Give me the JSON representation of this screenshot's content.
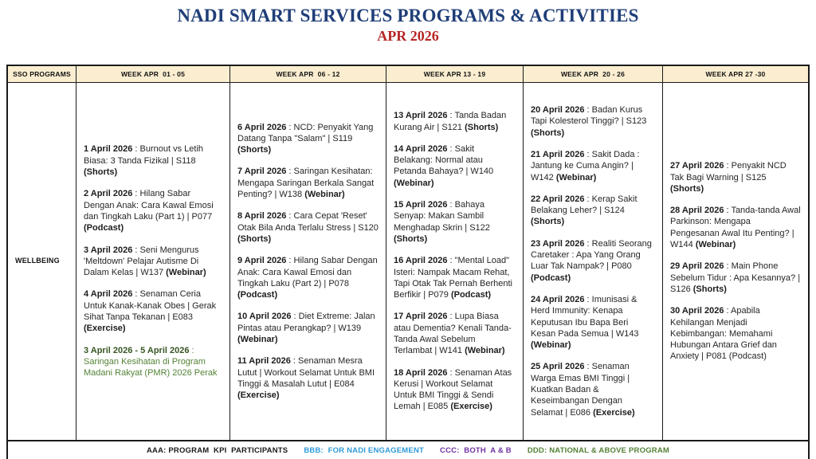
{
  "title": "NADI SMART SERVICES PROGRAMS & ACTIVITIES",
  "subtitle": "APR 2026",
  "colors": {
    "title_navy": "#1F3E78",
    "subtitle_red": "#B62525",
    "header_bg": "#FBEED0",
    "green_event_date": "#375623",
    "green_event_text": "#538235",
    "legend_black": "#1a1a1a",
    "legend_blue": "#2E9AD8",
    "legend_purple": "#7030A0",
    "legend_green": "#538135"
  },
  "table": {
    "corner_header": "SSO PROGRAMS",
    "week_headers": [
      "WEEK APR  01 - 05",
      "WEEK APR  06 - 12",
      "WEEK APR 13 - 19",
      "WEEK APR  20 - 26",
      "WEEK APR 27 -30"
    ],
    "row_label": "WELLBEING",
    "weeks": [
      {
        "events": [
          {
            "date": "1 April 2026",
            "desc": "Burnout vs Letih Biasa: 3 Tanda Fizikal | S118",
            "tag": "(Shorts)",
            "tag_bold": true,
            "green": false
          },
          {
            "date": "2 April 2026",
            "desc": "Hilang Sabar Dengan Anak: Cara Kawal Emosi dan Tingkah Laku (Part 1) | P077",
            "tag": "(Podcast)",
            "tag_bold": true,
            "green": false
          },
          {
            "date": "3 April 2026",
            "desc": "Seni Mengurus 'Meltdown' Pelajar Autisme Di Dalam Kelas | W137",
            "tag": "(Webinar)",
            "tag_bold": true,
            "green": false
          },
          {
            "date": "4 April 2026",
            "desc": "Senaman Ceria Untuk Kanak-Kanak Obes | Gerak Sihat Tanpa Tekanan | E083",
            "tag": "(Exercise)",
            "tag_bold": true,
            "green": false
          },
          {
            "date": "3 April 2026 - 5 April 2026",
            "desc": "Saringan Kesihatan di Program Madani Rakyat (PMR) 2026 Perak",
            "tag": "",
            "tag_bold": false,
            "green": true
          }
        ]
      },
      {
        "events": [
          {
            "date": "6 April 2026",
            "desc": "NCD: Penyakit Yang Datang Tanpa \"Salam\" | S119",
            "tag": "(Shorts)",
            "tag_bold": true,
            "green": false
          },
          {
            "date": "7 April 2026",
            "desc": "Saringan Kesihatan: Mengapa Saringan Berkala Sangat Penting? | W138",
            "tag": "(Webinar)",
            "tag_bold": true,
            "green": false
          },
          {
            "date": "8 April 2026",
            "desc": "Cara Cepat 'Reset' Otak Bila Anda Terlalu Stress | S120",
            "tag": "(Shorts)",
            "tag_bold": true,
            "green": false
          },
          {
            "date": "9 April 2026",
            "desc": "Hilang Sabar Dengan Anak: Cara Kawal Emosi dan Tingkah Laku (Part 2) | P078",
            "tag": "(Podcast)",
            "tag_bold": true,
            "green": false
          },
          {
            "date": "10 April 2026",
            "desc": "Diet Extreme: Jalan Pintas atau Perangkap? | W139",
            "tag": "(Webinar)",
            "tag_bold": true,
            "green": false
          },
          {
            "date": "11 April 2026",
            "desc": "Senaman Mesra Lutut | Workout Selamat Untuk BMI Tinggi & Masalah Lutut | E084",
            "tag": "(Exercise)",
            "tag_bold": true,
            "green": false
          }
        ]
      },
      {
        "events": [
          {
            "date": "13 April 2026",
            "desc": "Tanda Badan Kurang Air | S121",
            "tag": "(Shorts)",
            "tag_bold": true,
            "green": false
          },
          {
            "date": "14 April 2026",
            "desc": "Sakit Belakang: Normal atau Petanda Bahaya? | W140",
            "tag": "(Webinar)",
            "tag_bold": true,
            "green": false
          },
          {
            "date": "15 April 2026",
            "desc": "Bahaya Senyap: Makan Sambil Menghadap Skrin | S122",
            "tag": "(Shorts)",
            "tag_bold": true,
            "green": false
          },
          {
            "date": "16 April 2026",
            "desc": "\"Mental Load\" Isteri: Nampak Macam Rehat, Tapi Otak Tak Pernah Berhenti Berfikir | P079",
            "tag": "(Podcast)",
            "tag_bold": true,
            "green": false
          },
          {
            "date": "17 April 2026",
            "desc": "Lupa Biasa atau Dementia? Kenali Tanda-Tanda Awal Sebelum Terlambat | W141",
            "tag": "(Webinar)",
            "tag_bold": true,
            "green": false
          },
          {
            "date": "18 April 2026",
            "desc": "Senaman Atas Kerusi | Workout Selamat Untuk BMI Tinggi & Sendi Lemah | E085",
            "tag": "(Exercise)",
            "tag_bold": true,
            "green": false
          }
        ]
      },
      {
        "events": [
          {
            "date": "20 April 2026",
            "desc": "Badan Kurus Tapi Kolesterol Tinggi? | S123",
            "tag": "(Shorts)",
            "tag_bold": true,
            "green": false
          },
          {
            "date": "21 April 2026",
            "desc": "Sakit Dada : Jantung ke Cuma Angin? | W142",
            "tag": "(Webinar)",
            "tag_bold": true,
            "green": false
          },
          {
            "date": "22 April 2026",
            "desc": "Kerap Sakit Belakang Leher? | S124",
            "tag": "(Shorts)",
            "tag_bold": true,
            "green": false
          },
          {
            "date": "23 April 2026",
            "desc": "Realiti Seorang Caretaker : Apa Yang Orang Luar Tak Nampak? | P080",
            "tag": "(Podcast)",
            "tag_bold": true,
            "green": false
          },
          {
            "date": "24 April 2026",
            "desc": "Imunisasi & Herd Immunity:  Kenapa Keputusan Ibu Bapa Beri Kesan Pada Semua | W143",
            "tag": "(Webinar)",
            "tag_bold": true,
            "green": false
          },
          {
            "date": "25 April 2026",
            "desc": "Senaman Warga Emas BMI Tinggi | Kuatkan Badan & Keseimbangan Dengan Selamat | E086",
            "tag": "(Exercise)",
            "tag_bold": true,
            "green": false
          }
        ]
      },
      {
        "events": [
          {
            "date": "27 April 2026",
            "desc": "Penyakit NCD Tak Bagi Warning | S125",
            "tag": "(Shorts)",
            "tag_bold": true,
            "green": false
          },
          {
            "date": "28 April 2026",
            "desc": "Tanda-tanda Awal Parkinson: Mengapa Pengesanan Awal Itu Penting? | W144",
            "tag": "(Webinar)",
            "tag_bold": true,
            "green": false
          },
          {
            "date": "29 April 2026",
            "desc": "Main Phone Sebelum Tidur : Apa Kesannya? | S126",
            "tag": "(Shorts)",
            "tag_bold": true,
            "green": false
          },
          {
            "date": "30 April 2026",
            "desc": "Apabila Kehilangan Menjadi Kebimbangan: Memahami Hubungan Antara Grief dan Anxiety | P081",
            "tag": "(Podcast)",
            "tag_bold": false,
            "green": false
          }
        ]
      }
    ]
  },
  "legend": [
    {
      "id": "aaa",
      "label": "AAA: PROGRAM  KPI  PARTICIPANTS",
      "color": "#1a1a1a"
    },
    {
      "id": "bbb",
      "label": "BBB:  FOR NADI ENGAGEMENT",
      "color": "#2E9AD8"
    },
    {
      "id": "ccc",
      "label": "CCC:  BOTH  A & B",
      "color": "#7030A0"
    },
    {
      "id": "ddd",
      "label": "DDD: NATIONAL & ABOVE PROGRAM",
      "color": "#538135"
    }
  ]
}
